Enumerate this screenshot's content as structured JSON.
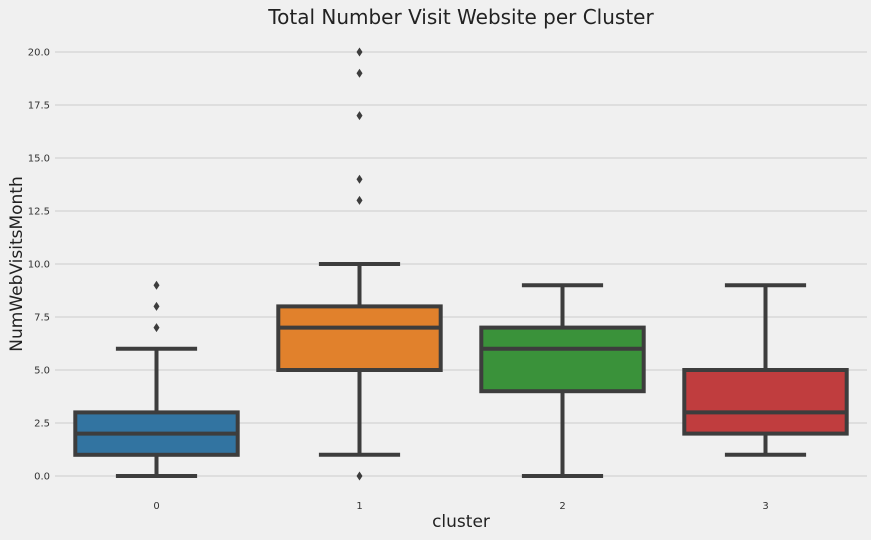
{
  "chart_data": {
    "type": "box",
    "title": "Total Number Visit Website per Cluster",
    "xlabel": "cluster",
    "ylabel": "NumWebVisitsMonth",
    "ylim": [
      -1,
      21
    ],
    "yticks": [
      "0.0",
      "2.5",
      "5.0",
      "7.5",
      "10.0",
      "12.5",
      "15.0",
      "17.5",
      "20.0"
    ],
    "grid": "horizontal",
    "categories": [
      "0",
      "1",
      "2",
      "3"
    ],
    "boxes": [
      {
        "category": "0",
        "whisker_low": 0,
        "q1": 1,
        "median": 2,
        "q3": 3,
        "whisker_high": 6,
        "outliers": [
          7,
          8,
          9
        ],
        "color": "#3274a1"
      },
      {
        "category": "1",
        "whisker_low": 1,
        "q1": 5,
        "median": 7,
        "q3": 8,
        "whisker_high": 10,
        "outliers": [
          0,
          13,
          14,
          17,
          19,
          20
        ],
        "color": "#e1812c"
      },
      {
        "category": "2",
        "whisker_low": 0,
        "q1": 4,
        "median": 6,
        "q3": 7,
        "whisker_high": 9,
        "outliers": [],
        "color": "#3a923a"
      },
      {
        "category": "3",
        "whisker_low": 1,
        "q1": 2,
        "median": 3,
        "q3": 5,
        "whisker_high": 9,
        "outliers": [],
        "color": "#c03d3e"
      }
    ]
  }
}
